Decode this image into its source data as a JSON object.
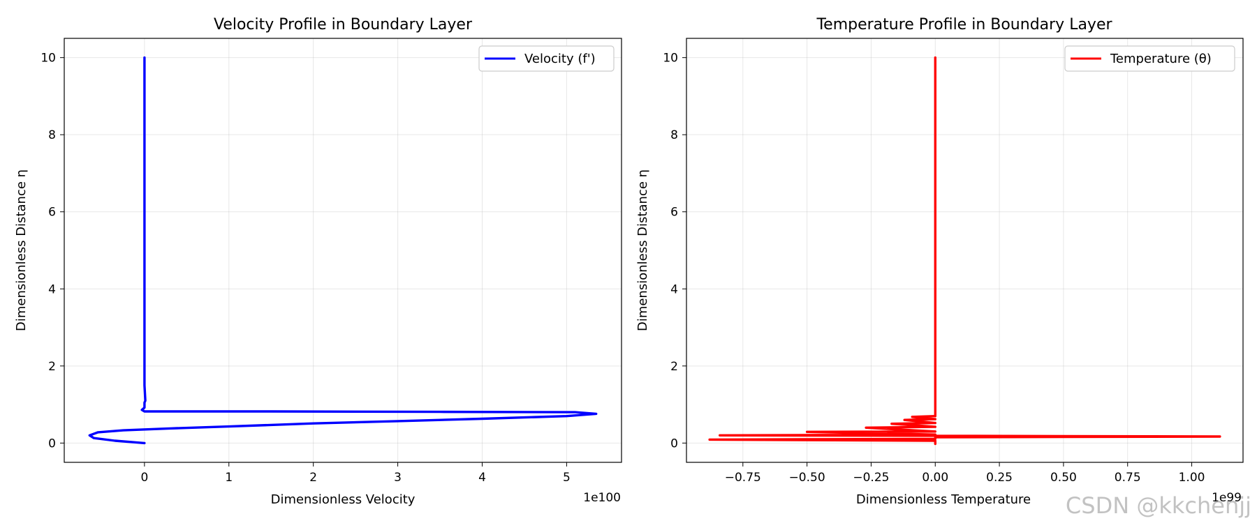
{
  "chart_data": [
    {
      "type": "line",
      "title": "Velocity Profile in Boundary Layer",
      "xlabel": "Dimensionless Velocity",
      "ylabel": "Dimensionless Distance η",
      "offset_label": "1e100",
      "xlim": [
        -0.95,
        5.65
      ],
      "ylim": [
        -0.5,
        10.5
      ],
      "xticks": [
        0,
        1,
        2,
        3,
        4,
        5
      ],
      "yticks": [
        0,
        2,
        4,
        6,
        8,
        10
      ],
      "grid": true,
      "legend_position": "top-right",
      "series": [
        {
          "name": "Velocity (f')",
          "color": "#0000ff",
          "points": [
            [
              0,
              0
            ],
            [
              -0.35,
              0.06
            ],
            [
              -0.6,
              0.13
            ],
            [
              -0.65,
              0.2
            ],
            [
              -0.55,
              0.28
            ],
            [
              -0.25,
              0.33
            ],
            [
              0.3,
              0.38
            ],
            [
              1.0,
              0.43
            ],
            [
              2.0,
              0.51
            ],
            [
              3.0,
              0.57
            ],
            [
              4.0,
              0.63
            ],
            [
              5.0,
              0.7
            ],
            [
              5.35,
              0.76
            ],
            [
              5.1,
              0.8
            ],
            [
              3.5,
              0.81
            ],
            [
              1.5,
              0.82
            ],
            [
              0.0,
              0.82
            ],
            [
              -0.03,
              0.86
            ],
            [
              0,
              0.92
            ],
            [
              0,
              1.0
            ],
            [
              0,
              1.05
            ],
            [
              0.01,
              1.1
            ],
            [
              0,
              1.5
            ],
            [
              0,
              5
            ],
            [
              0,
              10
            ]
          ]
        }
      ]
    },
    {
      "type": "line",
      "title": "Temperature Profile in Boundary Layer",
      "xlabel": "Dimensionless Temperature",
      "ylabel": "Dimensionless Distance η",
      "offset_label": "1e99",
      "xlim": [
        -0.97,
        1.2
      ],
      "ylim": [
        -0.5,
        10.5
      ],
      "xticks": [
        -0.75,
        -0.5,
        -0.25,
        0.0,
        0.25,
        0.5,
        0.75,
        1.0
      ],
      "xtick_labels": [
        "−0.75",
        "−0.50",
        "−0.25",
        "0.00",
        "0.25",
        "0.50",
        "0.75",
        "1.00"
      ],
      "yticks": [
        0,
        2,
        4,
        6,
        8,
        10
      ],
      "grid": true,
      "legend_position": "top-right",
      "series": [
        {
          "name": "Temperature (θ)",
          "color": "#ff0000",
          "points": [
            [
              0,
              -0.02
            ],
            [
              0,
              0.06
            ],
            [
              -0.88,
              0.09
            ],
            [
              0,
              0.11
            ],
            [
              0,
              0.13
            ],
            [
              0,
              0.15
            ],
            [
              1.11,
              0.17
            ],
            [
              0,
              0.19
            ],
            [
              -0.84,
              0.2
            ],
            [
              0,
              0.22
            ],
            [
              -0.5,
              0.29
            ],
            [
              0,
              0.3
            ],
            [
              -0.27,
              0.4
            ],
            [
              0,
              0.42
            ],
            [
              -0.17,
              0.5
            ],
            [
              0,
              0.52
            ],
            [
              -0.12,
              0.6
            ],
            [
              0,
              0.62
            ],
            [
              -0.09,
              0.68
            ],
            [
              0,
              0.7
            ],
            [
              0,
              0.72
            ],
            [
              0,
              5
            ],
            [
              0,
              10
            ]
          ]
        }
      ]
    }
  ],
  "watermark": "CSDN @kkchenjj"
}
